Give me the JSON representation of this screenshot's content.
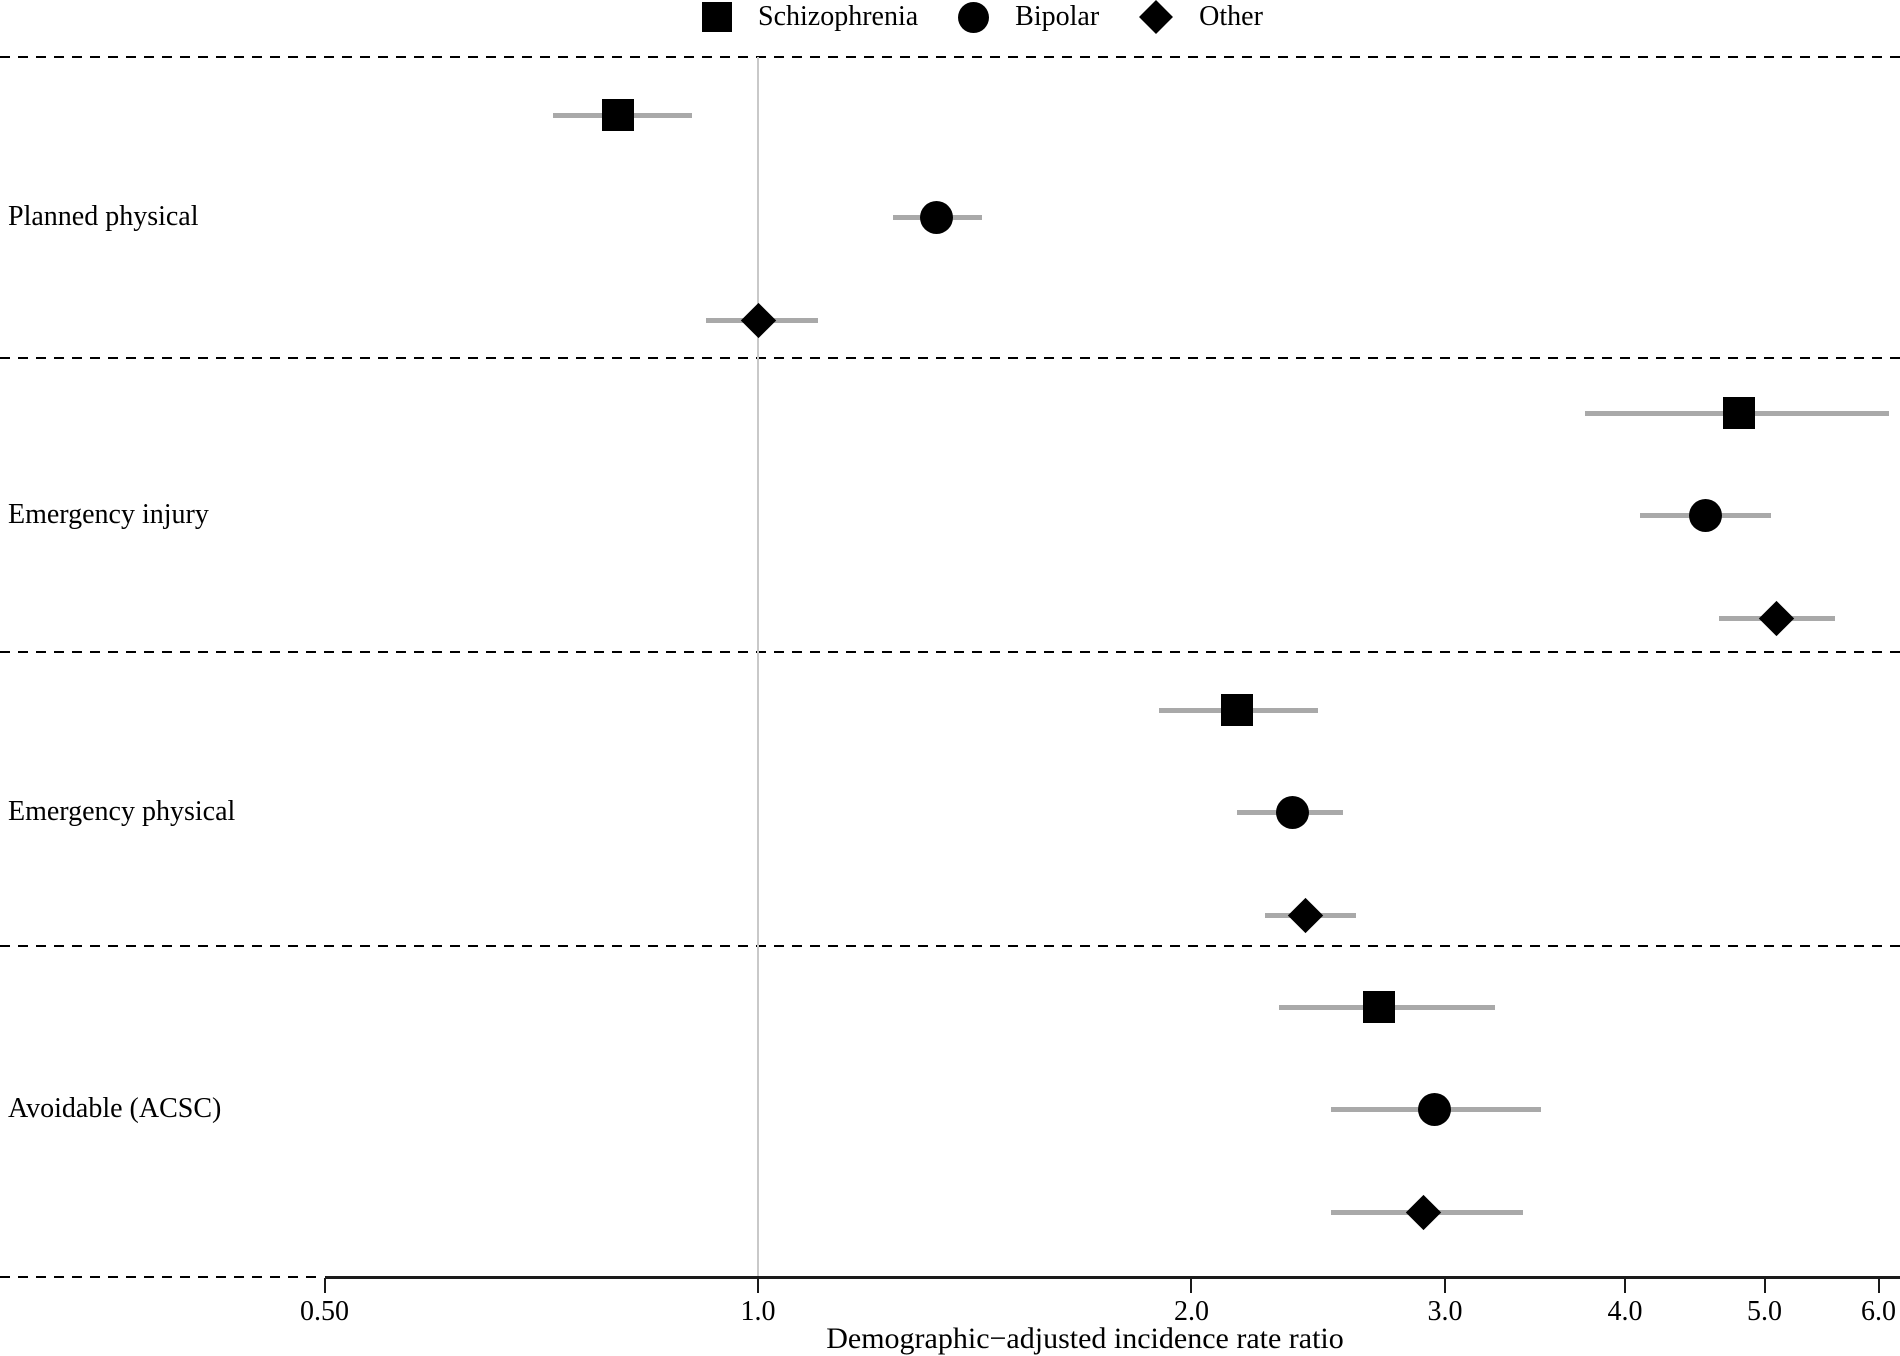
{
  "legend": [
    {
      "label": "Schizophrenia",
      "marker": "square"
    },
    {
      "label": "Bipolar",
      "marker": "circle"
    },
    {
      "label": "Other",
      "marker": "diamond"
    }
  ],
  "chart_data": {
    "type": "scatter",
    "variant": "forest-plot",
    "title": "",
    "xlabel": "Demographic−adjusted incidence rate ratio",
    "ylabel": "",
    "x_scale": "log",
    "x_ticks": [
      0.5,
      1.0,
      2.0,
      3.0,
      4.0,
      5.0,
      6.0
    ],
    "x_tick_labels": [
      "0.50",
      "1.0",
      "2.0",
      "3.0",
      "4.0",
      "5.0",
      "6.0"
    ],
    "xlim": [
      0.45,
      6.2
    ],
    "reference_line": 1.0,
    "grid": "off",
    "legend_position": "top-center",
    "series_names": [
      "Schizophrenia",
      "Bipolar",
      "Other"
    ],
    "groups": [
      {
        "label": "Planned physical",
        "estimates": [
          {
            "series": "Schizophrenia",
            "marker": "square",
            "value": 0.8,
            "ci_low": 0.72,
            "ci_high": 0.9
          },
          {
            "series": "Bipolar",
            "marker": "circle",
            "value": 1.33,
            "ci_low": 1.24,
            "ci_high": 1.43
          },
          {
            "series": "Other",
            "marker": "diamond",
            "value": 1.0,
            "ci_low": 0.92,
            "ci_high": 1.1
          }
        ]
      },
      {
        "label": "Emergency injury",
        "estimates": [
          {
            "series": "Schizophrenia",
            "marker": "square",
            "value": 4.8,
            "ci_low": 3.75,
            "ci_high": 6.1
          },
          {
            "series": "Bipolar",
            "marker": "circle",
            "value": 4.55,
            "ci_low": 4.1,
            "ci_high": 5.05
          },
          {
            "series": "Other",
            "marker": "diamond",
            "value": 5.1,
            "ci_low": 4.65,
            "ci_high": 5.6
          }
        ]
      },
      {
        "label": "Emergency physical",
        "estimates": [
          {
            "series": "Schizophrenia",
            "marker": "square",
            "value": 2.15,
            "ci_low": 1.9,
            "ci_high": 2.45
          },
          {
            "series": "Bipolar",
            "marker": "circle",
            "value": 2.35,
            "ci_low": 2.15,
            "ci_high": 2.55
          },
          {
            "series": "Other",
            "marker": "diamond",
            "value": 2.4,
            "ci_low": 2.25,
            "ci_high": 2.6
          }
        ]
      },
      {
        "label": "Avoidable (ACSC)",
        "estimates": [
          {
            "series": "Schizophrenia",
            "marker": "square",
            "value": 2.7,
            "ci_low": 2.3,
            "ci_high": 3.25
          },
          {
            "series": "Bipolar",
            "marker": "circle",
            "value": 2.95,
            "ci_low": 2.5,
            "ci_high": 3.5
          },
          {
            "series": "Other",
            "marker": "diamond",
            "value": 2.9,
            "ci_low": 2.5,
            "ci_high": 3.4
          }
        ]
      }
    ],
    "colors": {
      "marker": "#000000",
      "ci_line": "#a9a9a9",
      "reference_line": "#c9c9c9",
      "separator": "#000000"
    }
  }
}
